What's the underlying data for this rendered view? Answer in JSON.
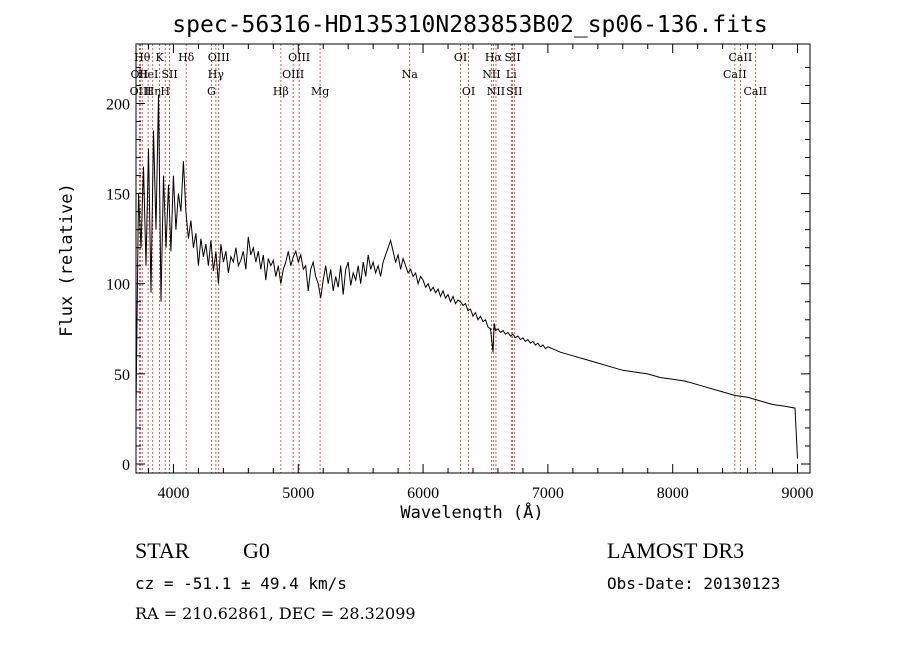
{
  "chart_data": {
    "type": "line",
    "title": "spec-56316-HD135310N283853B02_sp06-136.fits",
    "xlabel": "Wavelength (Å)",
    "ylabel": "Flux (relative)",
    "xlim": [
      3700,
      9100
    ],
    "ylim": [
      -5,
      233
    ],
    "xticks": [
      4000,
      5000,
      6000,
      7000,
      8000,
      9000
    ],
    "yticks": [
      0,
      50,
      100,
      150,
      200
    ],
    "grid": false,
    "series": [
      {
        "name": "flux",
        "points": [
          [
            3700,
            30
          ],
          [
            3720,
            150
          ],
          [
            3740,
            120
          ],
          [
            3760,
            165
          ],
          [
            3780,
            110
          ],
          [
            3800,
            175
          ],
          [
            3820,
            95
          ],
          [
            3840,
            185
          ],
          [
            3860,
            130
          ],
          [
            3880,
            205
          ],
          [
            3900,
            90
          ],
          [
            3920,
            160
          ],
          [
            3940,
            120
          ],
          [
            3960,
            155
          ],
          [
            3980,
            118
          ],
          [
            4000,
            160
          ],
          [
            4020,
            130
          ],
          [
            4040,
            150
          ],
          [
            4060,
            140
          ],
          [
            4080,
            168
          ],
          [
            4100,
            140
          ],
          [
            4120,
            125
          ],
          [
            4140,
            135
          ],
          [
            4160,
            120
          ],
          [
            4180,
            128
          ],
          [
            4200,
            110
          ],
          [
            4220,
            125
          ],
          [
            4240,
            115
          ],
          [
            4260,
            122
          ],
          [
            4280,
            110
          ],
          [
            4300,
            124
          ],
          [
            4320,
            107
          ],
          [
            4340,
            118
          ],
          [
            4360,
            100
          ],
          [
            4380,
            122
          ],
          [
            4400,
            112
          ],
          [
            4420,
            118
          ],
          [
            4440,
            106
          ],
          [
            4460,
            115
          ],
          [
            4480,
            112
          ],
          [
            4500,
            120
          ],
          [
            4520,
            110
          ],
          [
            4540,
            113
          ],
          [
            4560,
            118
          ],
          [
            4580,
            108
          ],
          [
            4600,
            126
          ],
          [
            4620,
            116
          ],
          [
            4640,
            120
          ],
          [
            4660,
            112
          ],
          [
            4680,
            118
          ],
          [
            4700,
            108
          ],
          [
            4720,
            116
          ],
          [
            4740,
            102
          ],
          [
            4760,
            114
          ],
          [
            4780,
            110
          ],
          [
            4800,
            113
          ],
          [
            4820,
            104
          ],
          [
            4840,
            110
          ],
          [
            4860,
            100
          ],
          [
            4880,
            108
          ],
          [
            4900,
            112
          ],
          [
            4920,
            118
          ],
          [
            4940,
            110
          ],
          [
            4960,
            115
          ],
          [
            4980,
            118
          ],
          [
            5000,
            112
          ],
          [
            5020,
            116
          ],
          [
            5040,
            108
          ],
          [
            5060,
            110
          ],
          [
            5080,
            96
          ],
          [
            5100,
            108
          ],
          [
            5120,
            112
          ],
          [
            5140,
            104
          ],
          [
            5160,
            100
          ],
          [
            5180,
            92
          ],
          [
            5200,
            102
          ],
          [
            5220,
            110
          ],
          [
            5240,
            100
          ],
          [
            5260,
            108
          ],
          [
            5280,
            96
          ],
          [
            5300,
            104
          ],
          [
            5320,
            98
          ],
          [
            5340,
            110
          ],
          [
            5360,
            94
          ],
          [
            5380,
            108
          ],
          [
            5400,
            112
          ],
          [
            5420,
            99
          ],
          [
            5440,
            106
          ],
          [
            5460,
            102
          ],
          [
            5480,
            110
          ],
          [
            5500,
            100
          ],
          [
            5520,
            112
          ],
          [
            5540,
            104
          ],
          [
            5560,
            116
          ],
          [
            5580,
            108
          ],
          [
            5600,
            112
          ],
          [
            5620,
            106
          ],
          [
            5640,
            110
          ],
          [
            5660,
            104
          ],
          [
            5680,
            112
          ],
          [
            5700,
            116
          ],
          [
            5720,
            120
          ],
          [
            5740,
            124
          ],
          [
            5760,
            118
          ],
          [
            5780,
            112
          ],
          [
            5800,
            116
          ],
          [
            5820,
            108
          ],
          [
            5840,
            114
          ],
          [
            5860,
            110
          ],
          [
            5880,
            106
          ],
          [
            5900,
            108
          ],
          [
            5920,
            104
          ],
          [
            5940,
            106
          ],
          [
            5960,
            100
          ],
          [
            5980,
            104
          ],
          [
            6000,
            102
          ],
          [
            6020,
            98
          ],
          [
            6040,
            100
          ],
          [
            6060,
            96
          ],
          [
            6080,
            98
          ],
          [
            6100,
            95
          ],
          [
            6120,
            97
          ],
          [
            6140,
            93
          ],
          [
            6160,
            96
          ],
          [
            6180,
            92
          ],
          [
            6200,
            94
          ],
          [
            6220,
            90
          ],
          [
            6240,
            93
          ],
          [
            6260,
            89
          ],
          [
            6280,
            91
          ],
          [
            6300,
            90
          ],
          [
            6320,
            88
          ],
          [
            6340,
            89
          ],
          [
            6360,
            85
          ],
          [
            6380,
            86
          ],
          [
            6400,
            82
          ],
          [
            6420,
            84
          ],
          [
            6440,
            80
          ],
          [
            6460,
            82
          ],
          [
            6480,
            79
          ],
          [
            6500,
            80
          ],
          [
            6520,
            76
          ],
          [
            6540,
            75
          ],
          [
            6560,
            62
          ],
          [
            6570,
            78
          ],
          [
            6580,
            74
          ],
          [
            6600,
            75
          ],
          [
            6620,
            73
          ],
          [
            6640,
            74
          ],
          [
            6660,
            72
          ],
          [
            6680,
            73
          ],
          [
            6700,
            71
          ],
          [
            6720,
            72
          ],
          [
            6740,
            70
          ],
          [
            6760,
            71
          ],
          [
            6780,
            69
          ],
          [
            6800,
            70
          ],
          [
            6820,
            68
          ],
          [
            6840,
            69
          ],
          [
            6860,
            67
          ],
          [
            6880,
            68
          ],
          [
            6900,
            66
          ],
          [
            6920,
            67
          ],
          [
            6940,
            65
          ],
          [
            6960,
            66
          ],
          [
            6980,
            64
          ],
          [
            7000,
            65
          ],
          [
            7100,
            62
          ],
          [
            7200,
            60
          ],
          [
            7300,
            58
          ],
          [
            7400,
            56
          ],
          [
            7500,
            54
          ],
          [
            7600,
            52
          ],
          [
            7700,
            51
          ],
          [
            7800,
            50
          ],
          [
            7900,
            48
          ],
          [
            8000,
            47
          ],
          [
            8100,
            46
          ],
          [
            8200,
            44
          ],
          [
            8300,
            42
          ],
          [
            8400,
            40
          ],
          [
            8500,
            38
          ],
          [
            8600,
            37
          ],
          [
            8700,
            35
          ],
          [
            8800,
            33
          ],
          [
            8900,
            32
          ],
          [
            8980,
            31
          ],
          [
            9000,
            3
          ]
        ]
      }
    ],
    "lines": [
      {
        "wl": 3727,
        "label": "OII",
        "row": 2
      },
      {
        "wl": 3737,
        "label": "OIII",
        "row": 3
      },
      {
        "wl": 3750,
        "label": "Hθ",
        "row": 1
      },
      {
        "wl": 3797,
        "label": "HeI",
        "row": 2
      },
      {
        "wl": 3834,
        "label": "Hη",
        "row": 3
      },
      {
        "wl": 3889,
        "label": "K",
        "row": 1
      },
      {
        "wl": 3934,
        "label": "H",
        "row": 3
      },
      {
        "wl": 3969,
        "label": "SII",
        "row": 2
      },
      {
        "wl": 4102,
        "label": "Hδ",
        "row": 1
      },
      {
        "wl": 4304,
        "label": "G",
        "row": 3
      },
      {
        "wl": 4340,
        "label": "Hγ",
        "row": 2
      },
      {
        "wl": 4363,
        "label": "OIII",
        "row": 1
      },
      {
        "wl": 4861,
        "label": "Hβ",
        "row": 3
      },
      {
        "wl": 4959,
        "label": "OIII",
        "row": 2
      },
      {
        "wl": 5007,
        "label": "OIII",
        "row": 1
      },
      {
        "wl": 5175,
        "label": "Mg",
        "row": 3
      },
      {
        "wl": 5893,
        "label": "Na",
        "row": 2
      },
      {
        "wl": 6300,
        "label": "OI",
        "row": 1
      },
      {
        "wl": 6364,
        "label": "OI",
        "row": 3
      },
      {
        "wl": 6548,
        "label": "NII",
        "row": 2
      },
      {
        "wl": 6563,
        "label": "Hα",
        "row": 1
      },
      {
        "wl": 6584,
        "label": "NII",
        "row": 3
      },
      {
        "wl": 6707,
        "label": "Li",
        "row": 2
      },
      {
        "wl": 6717,
        "label": "SII",
        "row": 1
      },
      {
        "wl": 6731,
        "label": "SII",
        "row": 3
      },
      {
        "wl": 8498,
        "label": "CaII",
        "row": 2
      },
      {
        "wl": 8542,
        "label": "CaII",
        "row": 1
      },
      {
        "wl": 8662,
        "label": "CaII",
        "row": 3
      }
    ]
  },
  "info": {
    "object_class": "STAR",
    "subclass": "G0",
    "survey": "LAMOST DR3",
    "cz": "cz = -51.1 ± 49.4 km/s",
    "obs_date": "Obs-Date: 20130123",
    "coords": "RA = 210.62861, DEC =  28.32099"
  }
}
